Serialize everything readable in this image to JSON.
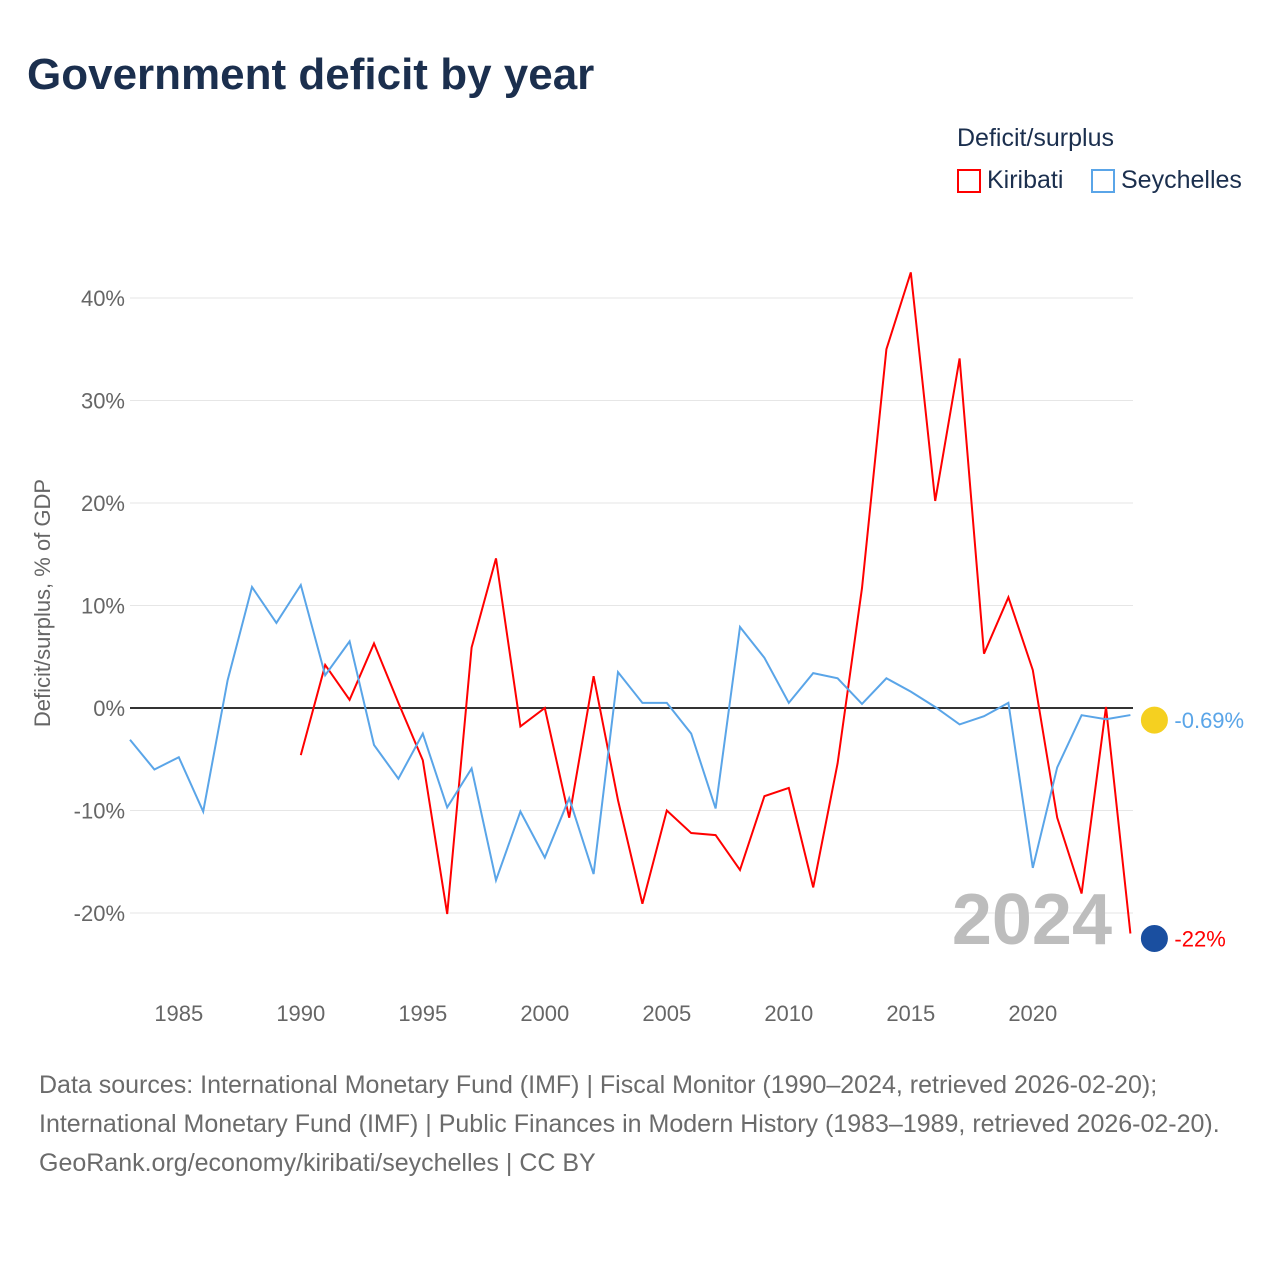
{
  "title": "Government deficit by year",
  "legend": {
    "title": "Deficit/surplus",
    "items": [
      {
        "name": "Kiribati",
        "color": "#ff0000"
      },
      {
        "name": "Seychelles",
        "color": "#5aa5e8"
      }
    ]
  },
  "watermark_year": "2024",
  "footer": {
    "sources": "Data sources: International Monetary Fund (IMF) | Fiscal Monitor (1990–2024, retrieved 2026-02-20); International Monetary Fund (IMF) | Public Finances in Modern History (1983–1989, retrieved 2026-02-20).",
    "credit": "GeoRank.org/economy/kiribati/seychelles | CC BY"
  },
  "chart_data": {
    "type": "line",
    "title": "Government deficit by year",
    "ylabel": "Deficit/surplus, % of GDP",
    "xlim": [
      1983,
      2024
    ],
    "ylim": [
      -25,
      45
    ],
    "xticks": [
      1985,
      1990,
      1995,
      2000,
      2005,
      2010,
      2015,
      2020
    ],
    "yticks": [
      -20,
      -10,
      0,
      10,
      20,
      30,
      40
    ],
    "ytick_labels": [
      "-20%",
      "-10%",
      "0%",
      "10%",
      "20%",
      "30%",
      "40%"
    ],
    "end_labels": {
      "Kiribati": "-22%",
      "Seychelles": "-0.69%"
    },
    "series": [
      {
        "name": "Kiribati",
        "color": "#ff0000",
        "start": 1990,
        "values": [
          -4.6,
          4.2,
          0.8,
          6.3,
          0.5,
          -5.1,
          -20.1,
          5.9,
          14.6,
          -1.8,
          0,
          -10.7,
          3.1,
          -9.0,
          -19.1,
          -10.0,
          -12.2,
          -12.4,
          -15.8,
          -8.6,
          -7.8,
          -17.5,
          -5.4,
          11.7,
          35.0,
          42.5,
          20.2,
          34.1,
          5.3,
          10.8,
          3.7,
          -10.7,
          -18.1,
          0.1,
          -22
        ]
      },
      {
        "name": "Seychelles",
        "color": "#5aa5e8",
        "start": 1983,
        "values": [
          -3.1,
          -6.0,
          -4.8,
          -10.1,
          2.7,
          11.8,
          8.3,
          12.0,
          3.2,
          6.5,
          -3.6,
          -6.9,
          -2.5,
          -9.7,
          -5.9,
          -16.8,
          -10.1,
          -14.6,
          -8.8,
          -16.2,
          3.5,
          0.5,
          0.5,
          -2.5,
          -9.8,
          7.9,
          4.9,
          0.5,
          3.4,
          2.9,
          0.4,
          2.9,
          1.6,
          0.1,
          -1.6,
          -0.8,
          0.5,
          -15.6,
          -5.8,
          -0.7,
          -1.1,
          -0.69
        ]
      }
    ]
  }
}
